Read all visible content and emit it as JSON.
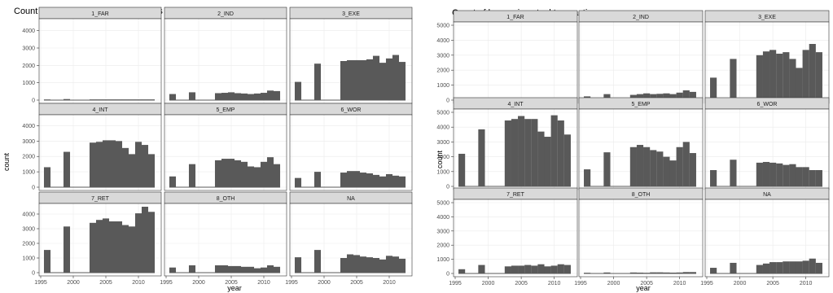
{
  "chart_data": [
    {
      "type": "bar",
      "title": "Count of sellers in actual transactions",
      "xlabel": "year",
      "ylabel": "count",
      "xlim": [
        1995,
        2013
      ],
      "ylim": [
        0,
        4500
      ],
      "x_ticks": [
        1995,
        2000,
        2005,
        2010
      ],
      "y_ticks": [
        0,
        1000,
        2000,
        3000,
        4000
      ],
      "x": [
        1996,
        1999,
        2003,
        2004,
        2005,
        2006,
        2007,
        2008,
        2009,
        2010,
        2011,
        2012
      ],
      "facets": [
        {
          "label": "1_FAR",
          "values": [
            10,
            60,
            40,
            40,
            40,
            40,
            40,
            40,
            40,
            40,
            40,
            40
          ]
        },
        {
          "label": "2_IND",
          "values": [
            350,
            450,
            400,
            420,
            450,
            400,
            380,
            350,
            380,
            420,
            550,
            520
          ]
        },
        {
          "label": "3_EXE",
          "values": [
            1050,
            2100,
            2250,
            2300,
            2300,
            2300,
            2350,
            2550,
            2150,
            2400,
            2600,
            2200
          ]
        },
        {
          "label": "4_INT",
          "values": [
            1300,
            2300,
            2900,
            2950,
            3050,
            3050,
            3000,
            2550,
            2150,
            2950,
            2750,
            2150
          ]
        },
        {
          "label": "5_EMP",
          "values": [
            700,
            1500,
            1750,
            1850,
            1850,
            1750,
            1650,
            1350,
            1300,
            1650,
            1950,
            1500
          ]
        },
        {
          "label": "6_WOR",
          "values": [
            600,
            1000,
            950,
            1050,
            1050,
            950,
            900,
            800,
            700,
            850,
            750,
            700
          ]
        },
        {
          "label": "7_RET",
          "values": [
            1550,
            3150,
            3400,
            3600,
            3700,
            3500,
            3500,
            3250,
            3150,
            4050,
            4500,
            4150
          ]
        },
        {
          "label": "8_OTH",
          "values": [
            350,
            500,
            500,
            500,
            450,
            450,
            400,
            400,
            300,
            350,
            500,
            400
          ]
        },
        {
          "label": "NA",
          "values": [
            1050,
            1550,
            1000,
            1250,
            1200,
            1100,
            1050,
            1000,
            900,
            1150,
            1100,
            950
          ]
        }
      ]
    },
    {
      "type": "bar",
      "title": "Count of buyers in actual transactions",
      "xlabel": "year",
      "ylabel": "count",
      "xlim": [
        1995,
        2013
      ],
      "ylim": [
        0,
        5000
      ],
      "x_ticks": [
        1995,
        2000,
        2005,
        2010
      ],
      "y_ticks": [
        0,
        1000,
        2000,
        3000,
        4000,
        5000
      ],
      "x": [
        1996,
        1999,
        2003,
        2004,
        2005,
        2006,
        2007,
        2008,
        2009,
        2010,
        2011,
        2012
      ],
      "facets": [
        {
          "label": "1_FAR",
          "values": [
            5,
            10,
            10,
            10,
            10,
            10,
            10,
            10,
            10,
            10,
            10,
            10
          ]
        },
        {
          "label": "2_IND",
          "values": [
            250,
            400,
            350,
            400,
            450,
            400,
            420,
            450,
            400,
            500,
            650,
            550
          ]
        },
        {
          "label": "3_EXE",
          "values": [
            1500,
            2750,
            3000,
            3250,
            3350,
            3100,
            3200,
            2750,
            2150,
            3350,
            3750,
            3200
          ]
        },
        {
          "label": "4_INT",
          "values": [
            2200,
            3850,
            4450,
            4550,
            4750,
            4550,
            4550,
            3700,
            3350,
            4800,
            4450,
            3500
          ]
        },
        {
          "label": "5_EMP",
          "values": [
            1150,
            2300,
            2650,
            2800,
            2650,
            2450,
            2350,
            2000,
            1750,
            2650,
            3000,
            2250
          ]
        },
        {
          "label": "6_WOR",
          "values": [
            1100,
            1800,
            1600,
            1650,
            1600,
            1550,
            1450,
            1500,
            1300,
            1300,
            1100,
            1100
          ]
        },
        {
          "label": "7_RET",
          "values": [
            300,
            600,
            500,
            550,
            550,
            600,
            550,
            650,
            500,
            550,
            650,
            600
          ]
        },
        {
          "label": "8_OTH",
          "values": [
            50,
            70,
            70,
            60,
            50,
            80,
            80,
            70,
            60,
            70,
            100,
            100
          ]
        },
        {
          "label": "NA",
          "values": [
            400,
            750,
            600,
            700,
            800,
            800,
            850,
            850,
            850,
            900,
            1050,
            750
          ]
        }
      ]
    }
  ]
}
